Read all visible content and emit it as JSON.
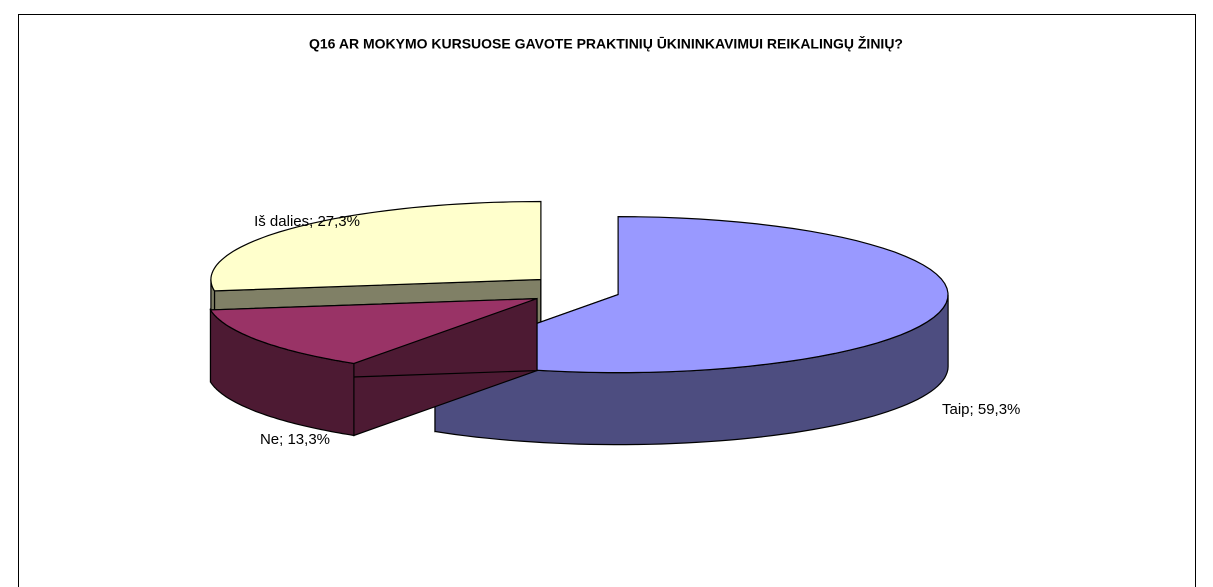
{
  "chart_data": {
    "type": "pie3d",
    "title": "Q16 AR MOKYMO KURSUOSE GAVOTE PRAKTINIŲ ŪKININKAVIMUI REIKALINGŲ ŽINIŲ?",
    "values": [
      59.3,
      13.3,
      27.3
    ],
    "value_labels": [
      "Taip; 59,3%",
      "Ne; 13,3%",
      "Iš dalies; 27,3%"
    ],
    "colors": [
      "#9999ff",
      "#993366",
      "#ffffcc"
    ]
  }
}
